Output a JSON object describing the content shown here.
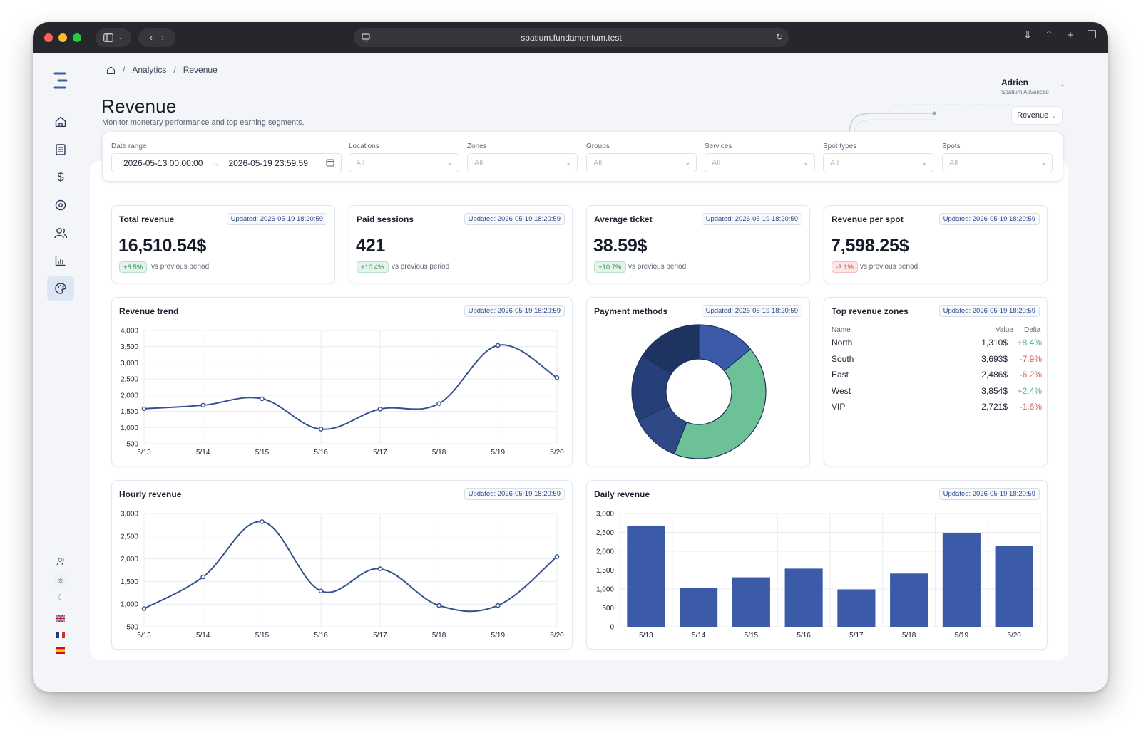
{
  "browser": {
    "url": "spatium.fundamentum.test"
  },
  "breadcrumb": {
    "items": [
      "Analytics",
      "Revenue"
    ]
  },
  "header": {
    "title": "Revenue",
    "subtitle": "Monitor monetary performance and top earning segments."
  },
  "user": {
    "name": "Adrien",
    "plan": "Spatium Advanced"
  },
  "view_select": {
    "label": "Revenue"
  },
  "filters": {
    "date_range_label": "Date range",
    "date_start": "2026-05-13 00:00:00",
    "date_end": "2026-05-19 23:59:59",
    "locations_label": "Locations",
    "zones_label": "Zones",
    "groups_label": "Groups",
    "services_label": "Services",
    "spot_types_label": "Spot types",
    "spots_label": "Spots",
    "all": "All"
  },
  "updated": "Updated: 2026-05-19 18:20:59",
  "kpis": [
    {
      "title": "Total revenue",
      "value": "16,510.54$",
      "delta": "+6.5%",
      "trend": "pos",
      "vs": "vs previous period"
    },
    {
      "title": "Paid sessions",
      "value": "421",
      "delta": "+10.4%",
      "trend": "pos",
      "vs": "vs previous period"
    },
    {
      "title": "Average ticket",
      "value": "38.59$",
      "delta": "+10.7%",
      "trend": "pos",
      "vs": "vs previous period"
    },
    {
      "title": "Revenue per spot",
      "value": "7,598.25$",
      "delta": "-3.1%",
      "trend": "neg",
      "vs": "vs previous period"
    }
  ],
  "panels": {
    "revenue_trend": "Revenue trend",
    "payment_methods": "Payment methods",
    "top_zones": "Top revenue zones",
    "hourly": "Hourly revenue",
    "daily": "Daily revenue"
  },
  "zones": {
    "headers": {
      "name": "Name",
      "value": "Value",
      "delta": "Delta"
    },
    "rows": [
      {
        "name": "North",
        "value": "1,310$",
        "delta": "+8.4%",
        "trend": "pos"
      },
      {
        "name": "South",
        "value": "3,693$",
        "delta": "-7.9%",
        "trend": "neg"
      },
      {
        "name": "East",
        "value": "2,486$",
        "delta": "-6.2%",
        "trend": "neg"
      },
      {
        "name": "West",
        "value": "3,854$",
        "delta": "+2.4%",
        "trend": "pos"
      },
      {
        "name": "VIP",
        "value": "2,721$",
        "delta": "-1.6%",
        "trend": "neg"
      }
    ]
  },
  "colors": {
    "accent": "#3b5aa8",
    "line": "#34508f",
    "green": "#6cc196",
    "navy": "#1f3361"
  },
  "chart_data": [
    {
      "id": "revenue_trend",
      "type": "line",
      "title": "Revenue trend",
      "x": [
        "5/13",
        "5/14",
        "5/15",
        "5/16",
        "5/17",
        "5/18",
        "5/19",
        "5/20"
      ],
      "values": [
        1580,
        1690,
        1890,
        950,
        1570,
        1740,
        3540,
        2540
      ],
      "yticks": [
        500,
        1000,
        1500,
        2000,
        2500,
        3000,
        3500,
        4000
      ],
      "ylim": [
        500,
        4000
      ],
      "grid": true
    },
    {
      "id": "payment_methods",
      "type": "pie",
      "title": "Payment methods",
      "donut": true,
      "slices": [
        {
          "value": 14,
          "color": "#3b5aa8"
        },
        {
          "value": 42,
          "color": "#6cc196"
        },
        {
          "value": 12,
          "color": "#2f4886"
        },
        {
          "value": 16,
          "color": "#263f78"
        },
        {
          "value": 16,
          "color": "#1f3361"
        }
      ]
    },
    {
      "id": "hourly",
      "type": "line",
      "title": "Hourly revenue",
      "x": [
        "5/13",
        "5/14",
        "5/15",
        "5/16",
        "5/17",
        "5/18",
        "5/19",
        "5/20"
      ],
      "values": [
        900,
        1600,
        2820,
        1290,
        1780,
        970,
        970,
        2050
      ],
      "yticks": [
        500,
        1000,
        1500,
        2000,
        2500,
        3000
      ],
      "ylim": [
        500,
        3000
      ],
      "grid": true
    },
    {
      "id": "daily",
      "type": "bar",
      "title": "Daily revenue",
      "categories": [
        "5/13",
        "5/14",
        "5/15",
        "5/16",
        "5/17",
        "5/18",
        "5/19",
        "5/20"
      ],
      "values": [
        2680,
        1020,
        1310,
        1540,
        990,
        1410,
        2480,
        2150
      ],
      "yticks": [
        0,
        500,
        1000,
        1500,
        2000,
        2500,
        3000
      ],
      "ylim": [
        0,
        3000
      ],
      "grid": true
    }
  ]
}
